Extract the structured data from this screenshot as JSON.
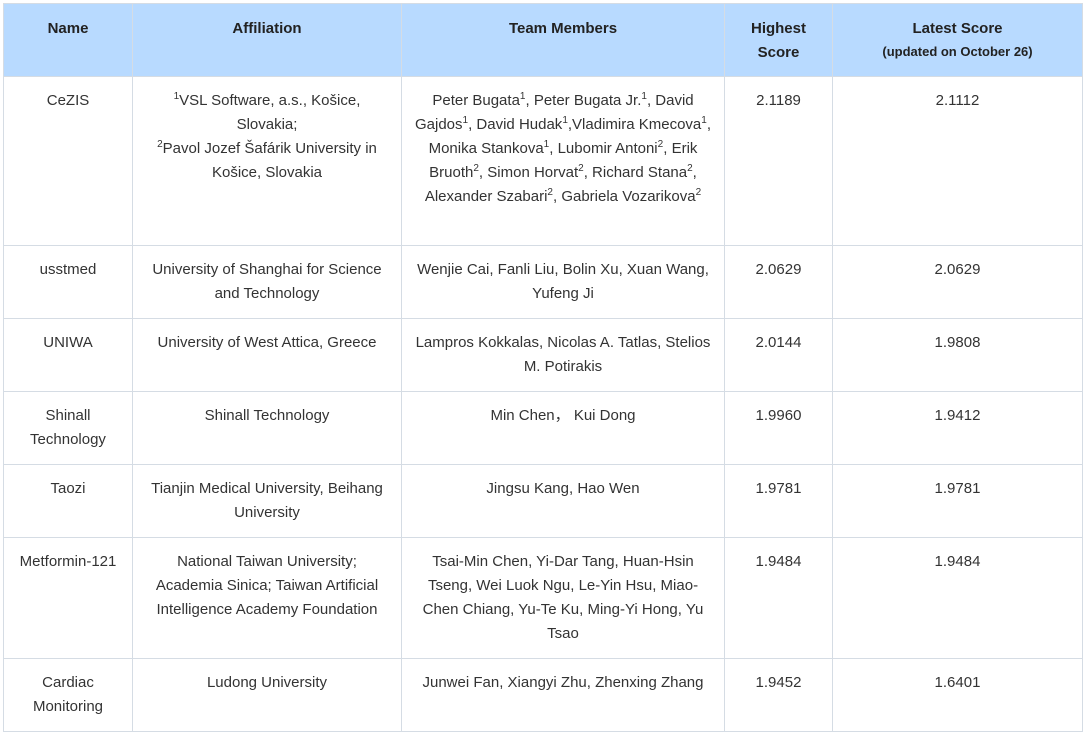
{
  "headers": {
    "name": "Name",
    "affiliation": "Affiliation",
    "team_members": "Team Members",
    "highest_score_line1": "Highest",
    "highest_score_line2": "Score",
    "latest_score": "Latest Score",
    "latest_score_sub": "(updated on October 26)"
  },
  "rows": [
    {
      "name": "CeZIS",
      "affiliation": {
        "a1_sup": "1",
        "a1": "VSL Software, a.s., Košice, Slovakia;",
        "a2_sup": "2",
        "a2": "Pavol Jozef Šafárik University in Košice, Slovakia"
      },
      "members": [
        {
          "name": "Peter Bugata",
          "sup": "1"
        },
        {
          "name": "Peter Bugata Jr.",
          "sup": "1"
        },
        {
          "name": "David Gajdos",
          "sup": "1"
        },
        {
          "name": "David Hudak",
          "sup": "1"
        },
        {
          "name": "Vladimira Kmecova",
          "sup": "1"
        },
        {
          "name": "Monika Stankova",
          "sup": "1"
        },
        {
          "name": "Lubomir Antoni",
          "sup": "2"
        },
        {
          "name": "Erik Bruoth",
          "sup": "2"
        },
        {
          "name": "Simon Horvat",
          "sup": "2"
        },
        {
          "name": "Richard Stana",
          "sup": "2"
        },
        {
          "name": "Alexander Szabari",
          "sup": "2"
        },
        {
          "name": "Gabriela Vozarikova",
          "sup": "2"
        }
      ],
      "highest": "2.1189",
      "latest": "2.1112"
    },
    {
      "name": "usstmed",
      "affiliation_text": "University of Shanghai for Science and Technology",
      "members_text": "Wenjie Cai, Fanli Liu, Bolin Xu, Xuan Wang, Yufeng Ji",
      "highest": "2.0629",
      "latest": "2.0629"
    },
    {
      "name": "UNIWA",
      "affiliation_text": "University of West Attica, Greece",
      "members_text": "Lampros Kokkalas, Nicolas A. Tatlas, Stelios M. Potirakis",
      "highest": "2.0144",
      "latest": "1.9808"
    },
    {
      "name": "Shinall Technology",
      "affiliation_text": "Shinall Technology",
      "members_text": "Min Chen， Kui Dong",
      "highest": "1.9960",
      "latest": "1.9412"
    },
    {
      "name": "Taozi",
      "affiliation_text": "Tianjin Medical University, Beihang University",
      "members_text": "Jingsu Kang, Hao Wen",
      "highest": "1.9781",
      "latest": "1.9781"
    },
    {
      "name": "Metformin-121",
      "affiliation_text": "National Taiwan University; Academia Sinica; Taiwan Artificial Intelligence Academy Foundation",
      "members_text": "Tsai-Min Chen, Yi-Dar Tang, Huan-Hsin Tseng, Wei Luok Ngu, Le-Yin Hsu, Miao-Chen Chiang, Yu-Te Ku, Ming-Yi Hong, Yu Tsao",
      "highest": "1.9484",
      "latest": "1.9484"
    },
    {
      "name": "Cardiac Monitoring",
      "affiliation_text": "Ludong University",
      "members_text": "Junwei Fan, Xiangyi Zhu, Zhenxing Zhang",
      "highest": "1.9452",
      "latest": "1.6401"
    }
  ]
}
